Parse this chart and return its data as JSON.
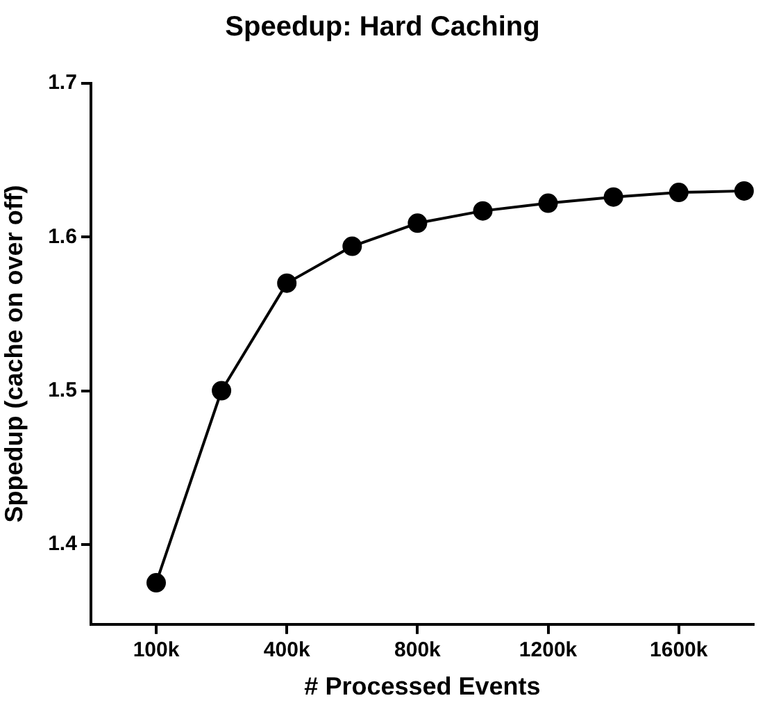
{
  "chart_data": {
    "type": "line",
    "title": "Speedup: Hard Caching",
    "xlabel": "# Processed Events",
    "ylabel": "Sppedup (cache on over off)",
    "categories": [
      "100k",
      null,
      "400k",
      null,
      "800k",
      null,
      "1200k",
      null,
      "1600k",
      null
    ],
    "series": [
      {
        "color": "#000000",
        "values": [
          1.375,
          1.5,
          1.57,
          1.594,
          1.609,
          1.617,
          1.622,
          1.626,
          1.629,
          1.63
        ]
      }
    ],
    "ylim": [
      1.348,
      1.7
    ],
    "yticks": [
      1.4,
      1.5,
      1.6,
      1.7
    ],
    "marker": "circle",
    "line_style": "solid",
    "grid": false,
    "legend": false
  }
}
